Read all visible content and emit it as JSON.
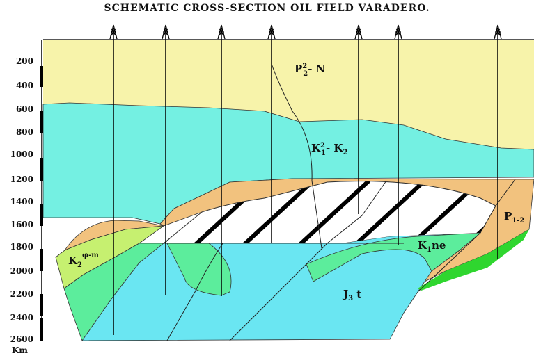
{
  "title": "SCHEMATIC CROSS-SECTION OIL FIELD VARADERO.",
  "depth_axis": {
    "unit": "Km",
    "ticks": [
      "200",
      "400",
      "600",
      "800",
      "1000",
      "1200",
      "1400",
      "1600",
      "1800",
      "2000",
      "2200",
      "2400",
      "2600"
    ]
  },
  "wells_count": 7,
  "formations": [
    {
      "id": "p2n",
      "base": "P",
      "sub": "2",
      "sup": "2",
      "suffix": "- N",
      "color": "#f7f3aa"
    },
    {
      "id": "k1k2",
      "base": "K",
      "sub": "1",
      "sup": "2",
      "suffix": "- K",
      "suffix_sub": "2",
      "color": "#74f0e2"
    },
    {
      "id": "p12",
      "base": "P",
      "sub": "1-2",
      "color": "#f2c27e"
    },
    {
      "id": "k1ne",
      "base": "K",
      "sub": "1",
      "suffix": "ne",
      "color": "#5ced9c"
    },
    {
      "id": "j3t",
      "base": "J",
      "sub": "3",
      "suffix": " t",
      "color": "#6ae6f2"
    },
    {
      "id": "k2pm",
      "base": "K",
      "sub": "2",
      "sup": "φ-m",
      "color": "#c6f070"
    }
  ],
  "colors": {
    "reservoir_hatch": "#000000",
    "bright_green": "#2fd62f"
  }
}
